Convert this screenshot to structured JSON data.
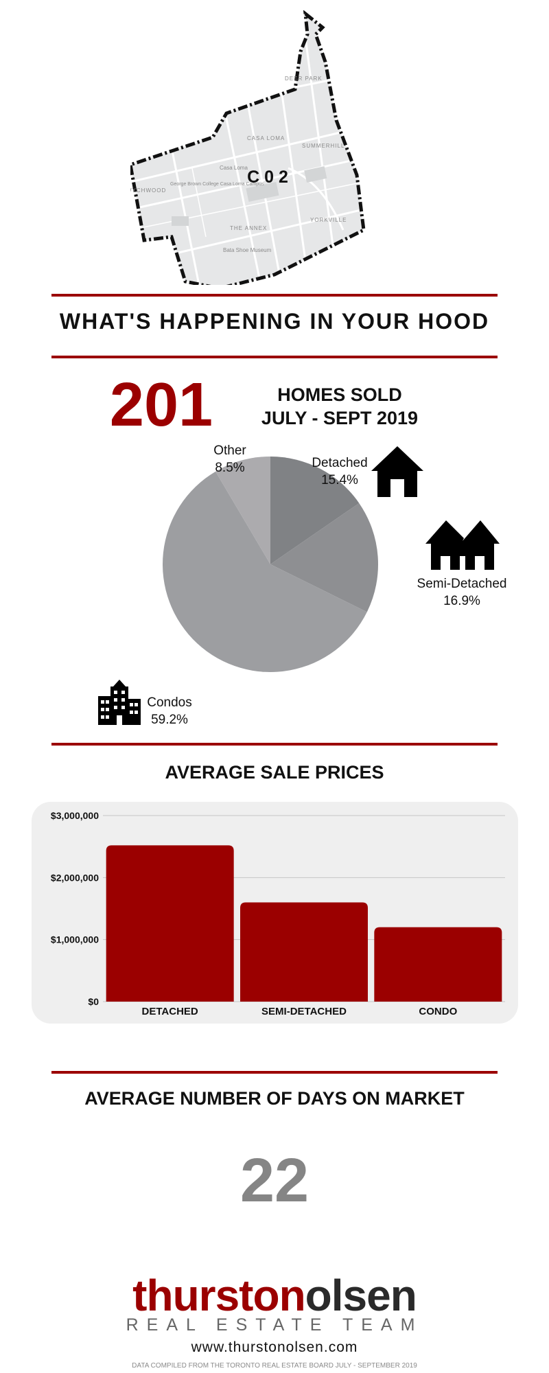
{
  "map": {
    "district_label": "C 0 2",
    "place_labels": [
      "DEER PARK",
      "CASA LOMA",
      "SUMMERHILL",
      "Casa Loma",
      "George Brown College Casa Loma Campus",
      "WYCHWOOD",
      "THE ANNEX",
      "YORKVILLE",
      "Bata Shoe Museum"
    ]
  },
  "hood": {
    "title": "WHAT'S HAPPENING IN YOUR HOOD"
  },
  "homes_sold": {
    "count": "201",
    "label_line1": "HOMES SOLD",
    "label_line2": "JULY - SEPT 2019"
  },
  "pie_chart": {
    "chart_data": {
      "type": "pie",
      "slices": [
        {
          "name": "Detached",
          "value": 15.4,
          "label": "15.4%",
          "color": "#808285",
          "icon": "house-icon"
        },
        {
          "name": "Semi-Detached",
          "value": 16.9,
          "label": "16.9%",
          "color": "#8e8f92",
          "icon": "semi-detached-house-icon"
        },
        {
          "name": "Condos",
          "value": 59.2,
          "label": "59.2%",
          "color": "#9d9ea1",
          "icon": "condo-building-icon"
        },
        {
          "name": "Other",
          "value": 8.5,
          "label": "8.5%",
          "color": "#acabae",
          "icon": ""
        }
      ]
    }
  },
  "prices": {
    "title": "AVERAGE SALE PRICES",
    "chart_data": {
      "type": "bar",
      "categories": [
        "DETACHED",
        "SEMI-DETACHED",
        "CONDO"
      ],
      "values": [
        2520000,
        1600000,
        1200000
      ],
      "ylim": [
        0,
        3000000
      ],
      "yticks": [
        0,
        1000000,
        2000000,
        3000000
      ],
      "ytick_labels": [
        "$0",
        "$1,000,000",
        "$2,000,000",
        "$3,000,000"
      ],
      "bar_color": "#9b0000",
      "grid": true
    }
  },
  "days_on_market": {
    "title": "AVERAGE NUMBER OF DAYS ON MARKET",
    "value": "22"
  },
  "logo": {
    "part1": "thurston",
    "part2": "olsen",
    "subtitle": "REAL ESTATE TEAM"
  },
  "website": "www.thurstonolsen.com",
  "footnote": "DATA COMPILED FROM THE TORONTO REAL ESTATE BOARD JULY - SEPTEMBER 2019",
  "colors": {
    "accent": "#9b0000",
    "gray_number": "#858585",
    "panel": "#efefef"
  }
}
